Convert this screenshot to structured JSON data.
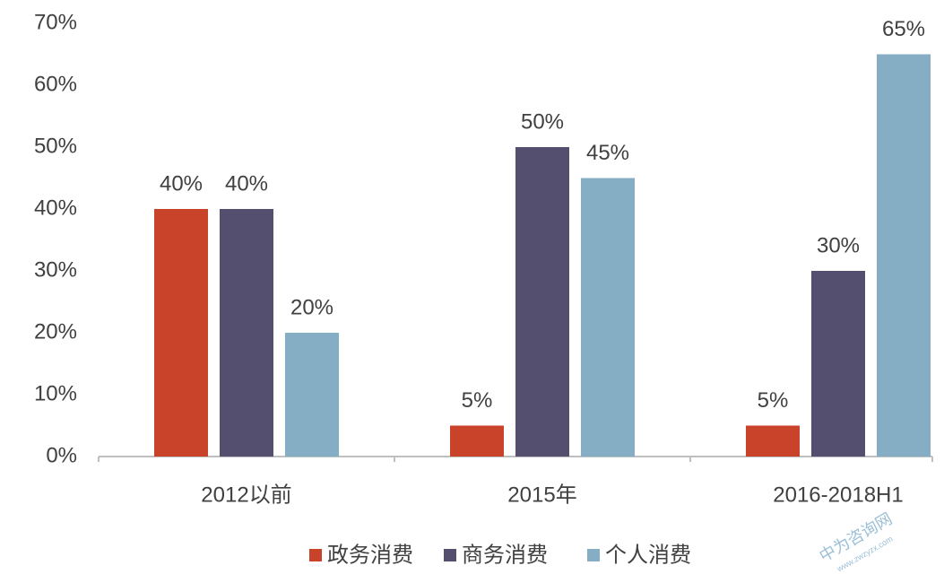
{
  "chart_data": {
    "type": "bar",
    "categories": [
      "2012以前",
      "2015年",
      "2016-2018H1"
    ],
    "series": [
      {
        "name": "政务消费",
        "color": "#c8432a",
        "values": [
          40,
          5,
          5
        ],
        "value_labels": [
          "40%",
          "5%",
          "5%"
        ]
      },
      {
        "name": "商务消费",
        "color": "#544f6e",
        "values": [
          40,
          50,
          30
        ],
        "value_labels": [
          "40%",
          "50%",
          "30%"
        ]
      },
      {
        "name": "个人消费",
        "color": "#85aec4",
        "values": [
          20,
          45,
          65
        ],
        "value_labels": [
          "20%",
          "45%",
          "65%"
        ]
      }
    ],
    "ylim": [
      0,
      70
    ],
    "yticks": [
      {
        "value": 0,
        "label": "0%"
      },
      {
        "value": 10,
        "label": "10%"
      },
      {
        "value": 20,
        "label": "20%"
      },
      {
        "value": 30,
        "label": "30%"
      },
      {
        "value": 40,
        "label": "40%"
      },
      {
        "value": 50,
        "label": "50%"
      },
      {
        "value": 60,
        "label": "60%"
      },
      {
        "value": 70,
        "label": "70%"
      }
    ],
    "grid": false,
    "legend": "bottom",
    "watermark": [
      "中为咨询网",
      "www.zwzyzx.com"
    ]
  }
}
